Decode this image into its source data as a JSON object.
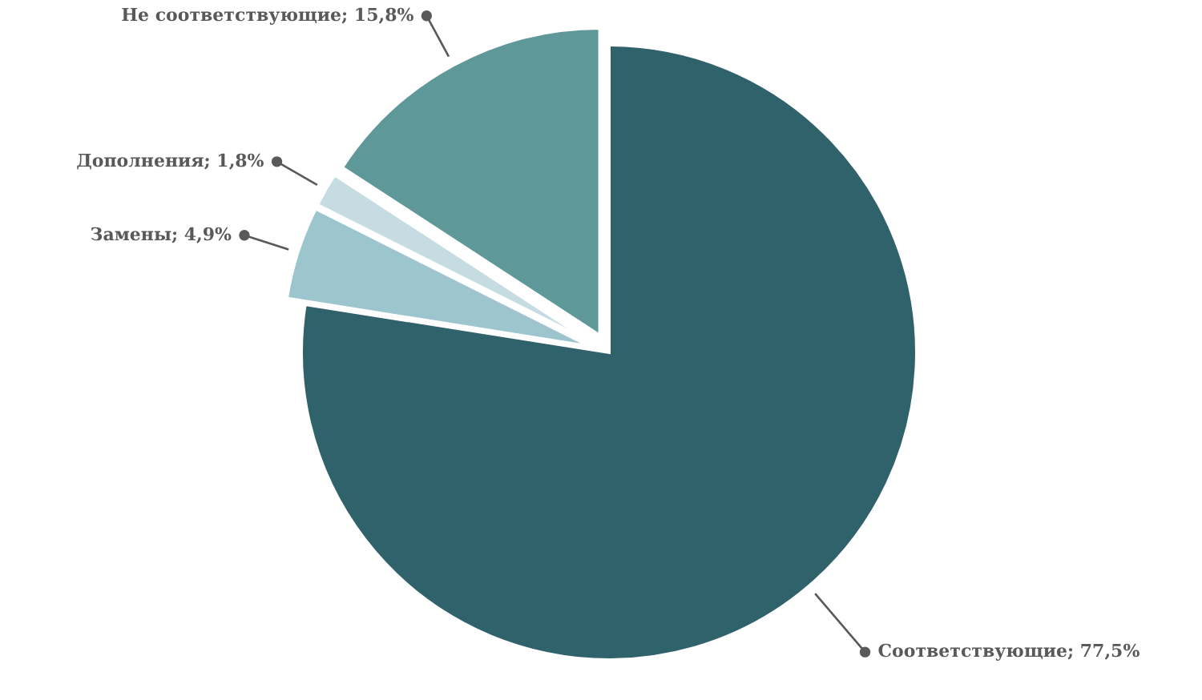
{
  "chart_data": {
    "type": "pie",
    "categories": [
      "Соответствующие",
      "Замены",
      "Дополнения",
      "Не соответствующие"
    ],
    "values": [
      77.5,
      4.9,
      1.8,
      15.8
    ],
    "colors": [
      "#30626c",
      "#9cc5cd",
      "#c4dce2",
      "#5e9899"
    ],
    "value_labels": [
      "77,5%",
      "4,9%",
      "1,8%",
      "15,8%"
    ]
  }
}
